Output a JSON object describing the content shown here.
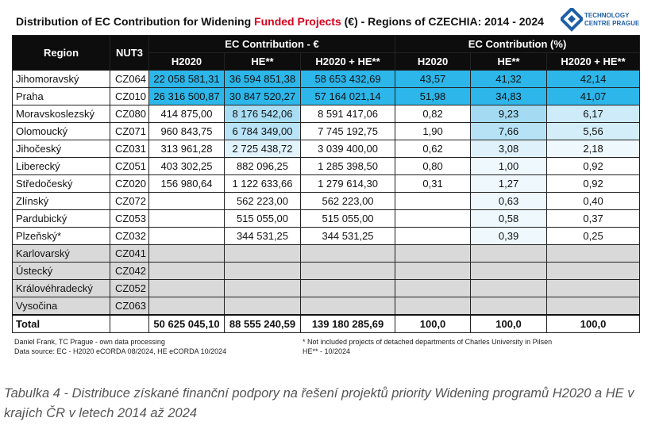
{
  "header": {
    "title_start": "Distribution of EC Contribution for Widening ",
    "title_highlight": "Funded Projects",
    "title_end": " (€) - Regions of CZECHIA: 2014 - 2024",
    "logo_line1": "TECHNOLOGY",
    "logo_line2": "CENTRE PRAGUE"
  },
  "table": {
    "head_top": [
      "Region",
      "NUT3",
      "EC Contribution - €",
      "EC Contribution (%)"
    ],
    "head_sub": [
      "H2020",
      "HE**",
      "H2020 + HE**",
      "H2020",
      "HE**",
      "H2020 + HE**"
    ],
    "rows": [
      [
        "Jihomoravský",
        "CZ064",
        "22 058 581,31",
        "36 594 851,38",
        "58 653 432,69",
        "43,57",
        "41,32",
        "42,14"
      ],
      [
        "Praha",
        "CZ010",
        "26 316 500,87",
        "30 847 520,27",
        "57 164 021,14",
        "51,98",
        "34,83",
        "41,07"
      ],
      [
        "Moravskoslezský",
        "CZ080",
        "414 875,00",
        "8 176 542,06",
        "8 591 417,06",
        "0,82",
        "9,23",
        "6,17"
      ],
      [
        "Olomoucký",
        "CZ071",
        "960 843,75",
        "6 784 349,00",
        "7 745 192,75",
        "1,90",
        "7,66",
        "5,56"
      ],
      [
        "Jihočeský",
        "CZ031",
        "313 961,28",
        "2 725 438,72",
        "3 039 400,00",
        "0,62",
        "3,08",
        "2,18"
      ],
      [
        "Liberecký",
        "CZ051",
        "403 302,25",
        "882 096,25",
        "1 285 398,50",
        "0,80",
        "1,00",
        "0,92"
      ],
      [
        "Středočeský",
        "CZ020",
        "156 980,64",
        "1 122 633,66",
        "1 279 614,30",
        "0,31",
        "1,27",
        "0,92"
      ],
      [
        "Zlínský",
        "CZ072",
        null,
        "562 223,00",
        "562 223,00",
        null,
        "0,63",
        "0,40"
      ],
      [
        "Pardubický",
        "CZ053",
        null,
        "515 055,00",
        "515 055,00",
        null,
        "0,58",
        "0,37"
      ],
      [
        "Plzeňský*",
        "CZ032",
        null,
        "344 531,25",
        "344 531,25",
        null,
        "0,39",
        "0,25"
      ],
      [
        "Karlovarský",
        "CZ041",
        null,
        null,
        null,
        null,
        null,
        null
      ],
      [
        "Ústecký",
        "CZ042",
        null,
        null,
        null,
        null,
        null,
        null
      ],
      [
        "Královéhradecký",
        "CZ052",
        null,
        null,
        null,
        null,
        null,
        null
      ],
      [
        "Vysočina",
        "CZ063",
        null,
        null,
        null,
        null,
        null,
        null
      ]
    ],
    "total": [
      "Total",
      null,
      "50 625 045,10",
      "88 555 240,59",
      "139 180 285,69",
      "100,0",
      "100,0",
      "100,0"
    ]
  },
  "notes": {
    "left": [
      "Daniel Frank, TC Prague - own data processing",
      "Data source: EC - H2020 eCORDA 08/2024, HE eCORDA 10/2024"
    ],
    "right": [
      "* Not included projects of detached departments of Charles University in Pilsen",
      "HE** - 10/2024"
    ]
  },
  "caption": "Tabulka 4 - Distribuce získané finanční podpory na řešení projektů priority Widening programů H2020 a HE v krajích ČR v letech 2014 až 2024"
}
